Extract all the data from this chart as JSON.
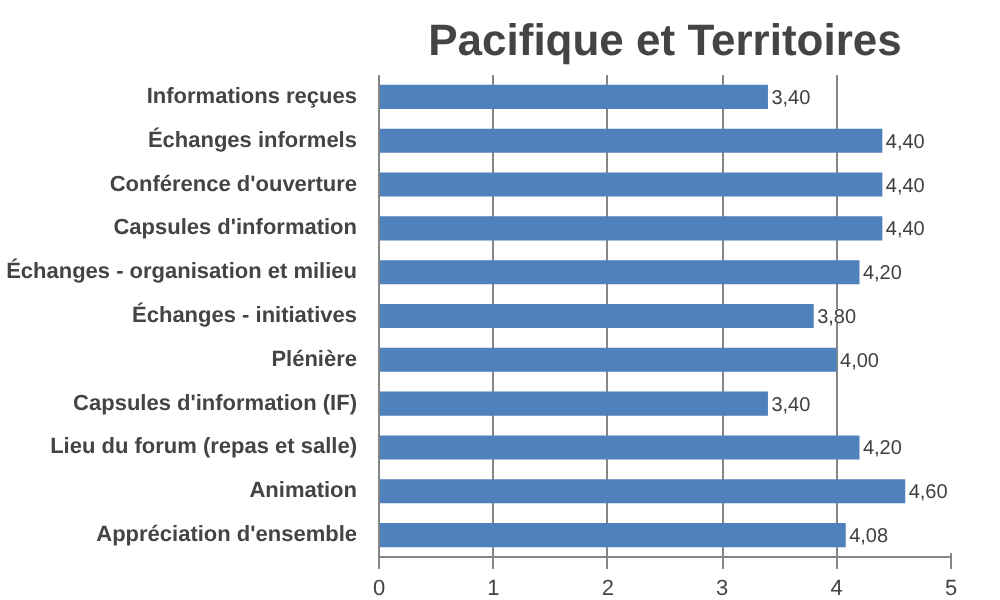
{
  "chart_data": {
    "type": "bar",
    "orientation": "horizontal",
    "title": "Pacifique et Territoires",
    "categories": [
      "Informations reçues",
      "Échanges informels",
      "Conférence d'ouverture",
      "Capsules d'information",
      "Échanges - organisation et milieu",
      "Échanges - initiatives",
      "Plénière",
      "Capsules d'information (IF)",
      "Lieu du forum (repas et salle)",
      "Animation",
      "Appréciation d'ensemble"
    ],
    "values": [
      3.4,
      4.4,
      4.4,
      4.4,
      4.2,
      3.8,
      4.0,
      3.4,
      4.2,
      4.6,
      4.08
    ],
    "value_labels": [
      "3,40",
      "4,40",
      "4,40",
      "4,40",
      "4,20",
      "3,80",
      "4,00",
      "3,40",
      "4,20",
      "4,60",
      "4,08"
    ],
    "color": "#4f81bd",
    "xlim": [
      0,
      5
    ],
    "xticks": [
      0,
      1,
      2,
      3,
      4,
      5
    ],
    "grid": "x"
  }
}
